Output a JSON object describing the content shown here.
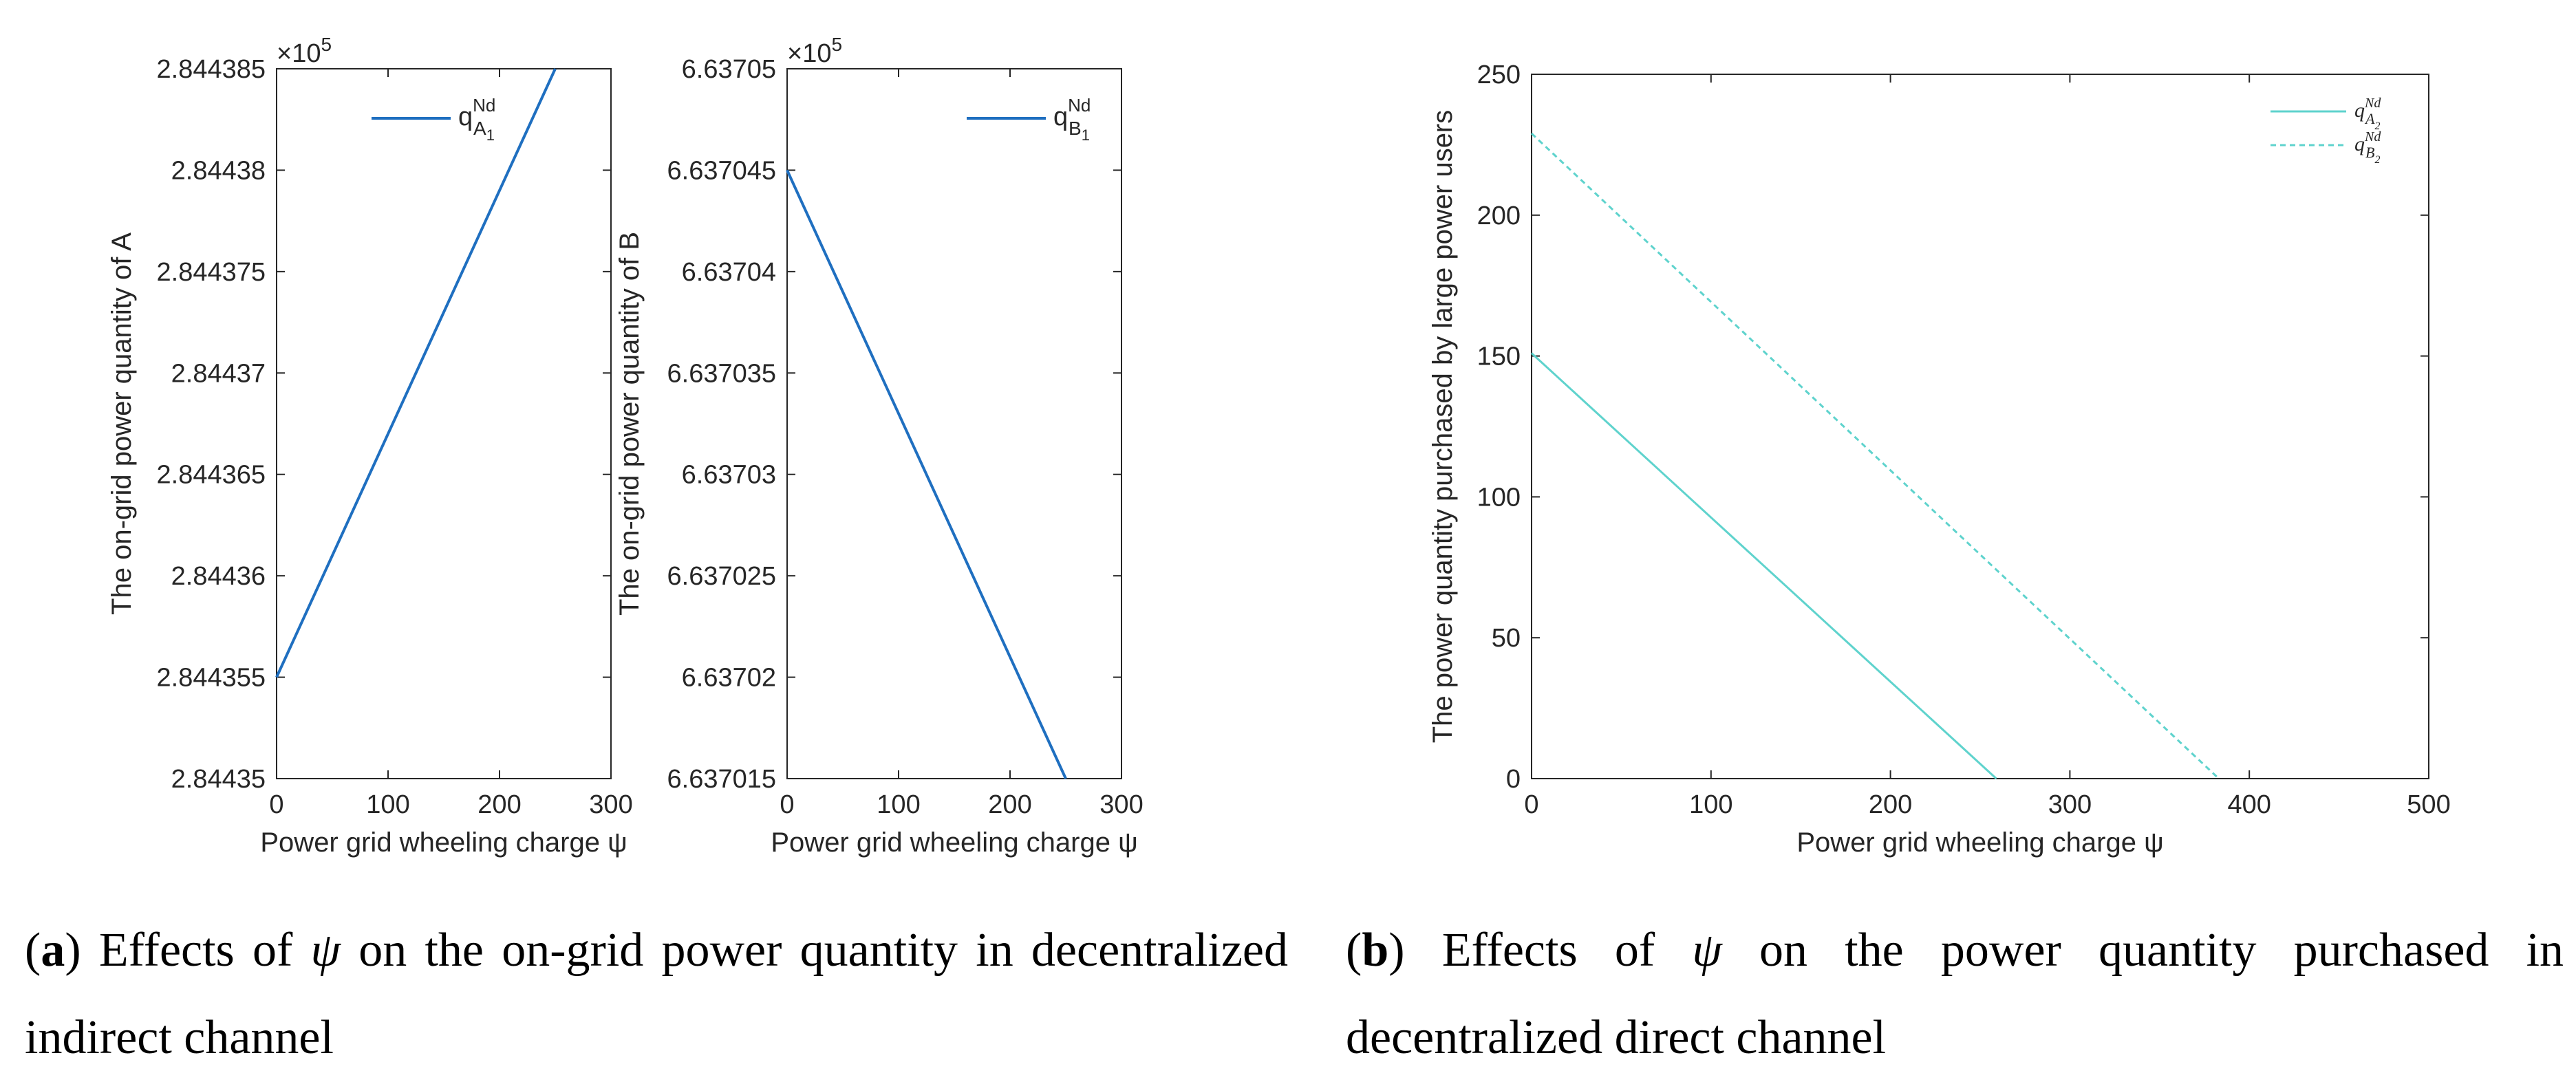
{
  "figure": {
    "captions": [
      {
        "label": "a",
        "before_symbol": "Effects of",
        "symbol": "ψ",
        "after_symbol": "on the on-grid power quantity in decentralized indirect channel"
      },
      {
        "label": "b",
        "before_symbol": "Effects of",
        "symbol": "ψ",
        "after_symbol": "on the power quantity purchased in decentralized direct channel"
      }
    ]
  },
  "chart_data": [
    {
      "id": "a1",
      "type": "line",
      "xlabel": "Power grid wheeling charge ψ",
      "ylabel": "The on-grid power quantity of A",
      "xlim": [
        0,
        300
      ],
      "ylim": [
        284435,
        284438.5
      ],
      "xticks": [
        0,
        100,
        200,
        300
      ],
      "xtick_labels": [
        "0",
        "100",
        "200",
        "300"
      ],
      "yticks": [
        284435,
        284435.5,
        284436,
        284436.5,
        284437,
        284437.5,
        284438,
        284438.5
      ],
      "ytick_labels": [
        "2.84435",
        "2.844355",
        "2.84436",
        "2.844365",
        "2.84437",
        "2.844375",
        "2.84438",
        "2.844385"
      ],
      "exponent_label": "×10",
      "exponent_power": "5",
      "legend_position": "top",
      "series": [
        {
          "name": "q",
          "legend_sup": "Nd",
          "legend_sub": "A",
          "legend_subsub": "1",
          "color": "#1f6fc0",
          "style": "solid",
          "x": [
            0,
            250
          ],
          "y": [
            284435.5,
            284438.5
          ]
        }
      ]
    },
    {
      "id": "a2",
      "type": "line",
      "xlabel": "Power grid wheeling charge ψ",
      "ylabel": "The on-grid power quantity of B",
      "xlim": [
        0,
        300
      ],
      "ylim": [
        663701.5,
        663705
      ],
      "xticks": [
        0,
        100,
        200,
        300
      ],
      "xtick_labels": [
        "0",
        "100",
        "200",
        "300"
      ],
      "yticks": [
        663701.5,
        663702,
        663702.5,
        663703,
        663703.5,
        663704,
        663704.5,
        663705
      ],
      "ytick_labels": [
        "6.637015",
        "6.63702",
        "6.637025",
        "6.63703",
        "6.637035",
        "6.63704",
        "6.637045",
        "6.63705"
      ],
      "exponent_label": "×10",
      "exponent_power": "5",
      "legend_position": "top-right",
      "series": [
        {
          "name": "q",
          "legend_sup": "Nd",
          "legend_sub": "B",
          "legend_subsub": "1",
          "color": "#1f6fc0",
          "style": "solid",
          "x": [
            0,
            250
          ],
          "y": [
            663704.5,
            663701.5
          ]
        }
      ]
    },
    {
      "id": "b",
      "type": "line",
      "xlabel": "Power grid wheeling charge ψ",
      "ylabel": "The power quantity purchased by large power users",
      "xlim": [
        0,
        500
      ],
      "ylim": [
        0,
        250
      ],
      "xticks": [
        0,
        100,
        200,
        300,
        400,
        500
      ],
      "xtick_labels": [
        "0",
        "100",
        "200",
        "300",
        "400",
        "500"
      ],
      "yticks": [
        0,
        50,
        100,
        150,
        200,
        250
      ],
      "ytick_labels": [
        "0",
        "50",
        "100",
        "150",
        "200",
        "250"
      ],
      "legend_position": "top-right",
      "series": [
        {
          "name": "q",
          "legend_sup": "Nd",
          "legend_sub": "A",
          "legend_subsub": "2",
          "color": "#5fd3cd",
          "style": "solid",
          "x": [
            0,
            259
          ],
          "y": [
            151,
            0
          ]
        },
        {
          "name": "q",
          "legend_sup": "Nd",
          "legend_sub": "B",
          "legend_subsub": "2",
          "color": "#5fd3cd",
          "style": "dashed",
          "x": [
            0,
            383
          ],
          "y": [
            229,
            0
          ]
        }
      ]
    }
  ]
}
